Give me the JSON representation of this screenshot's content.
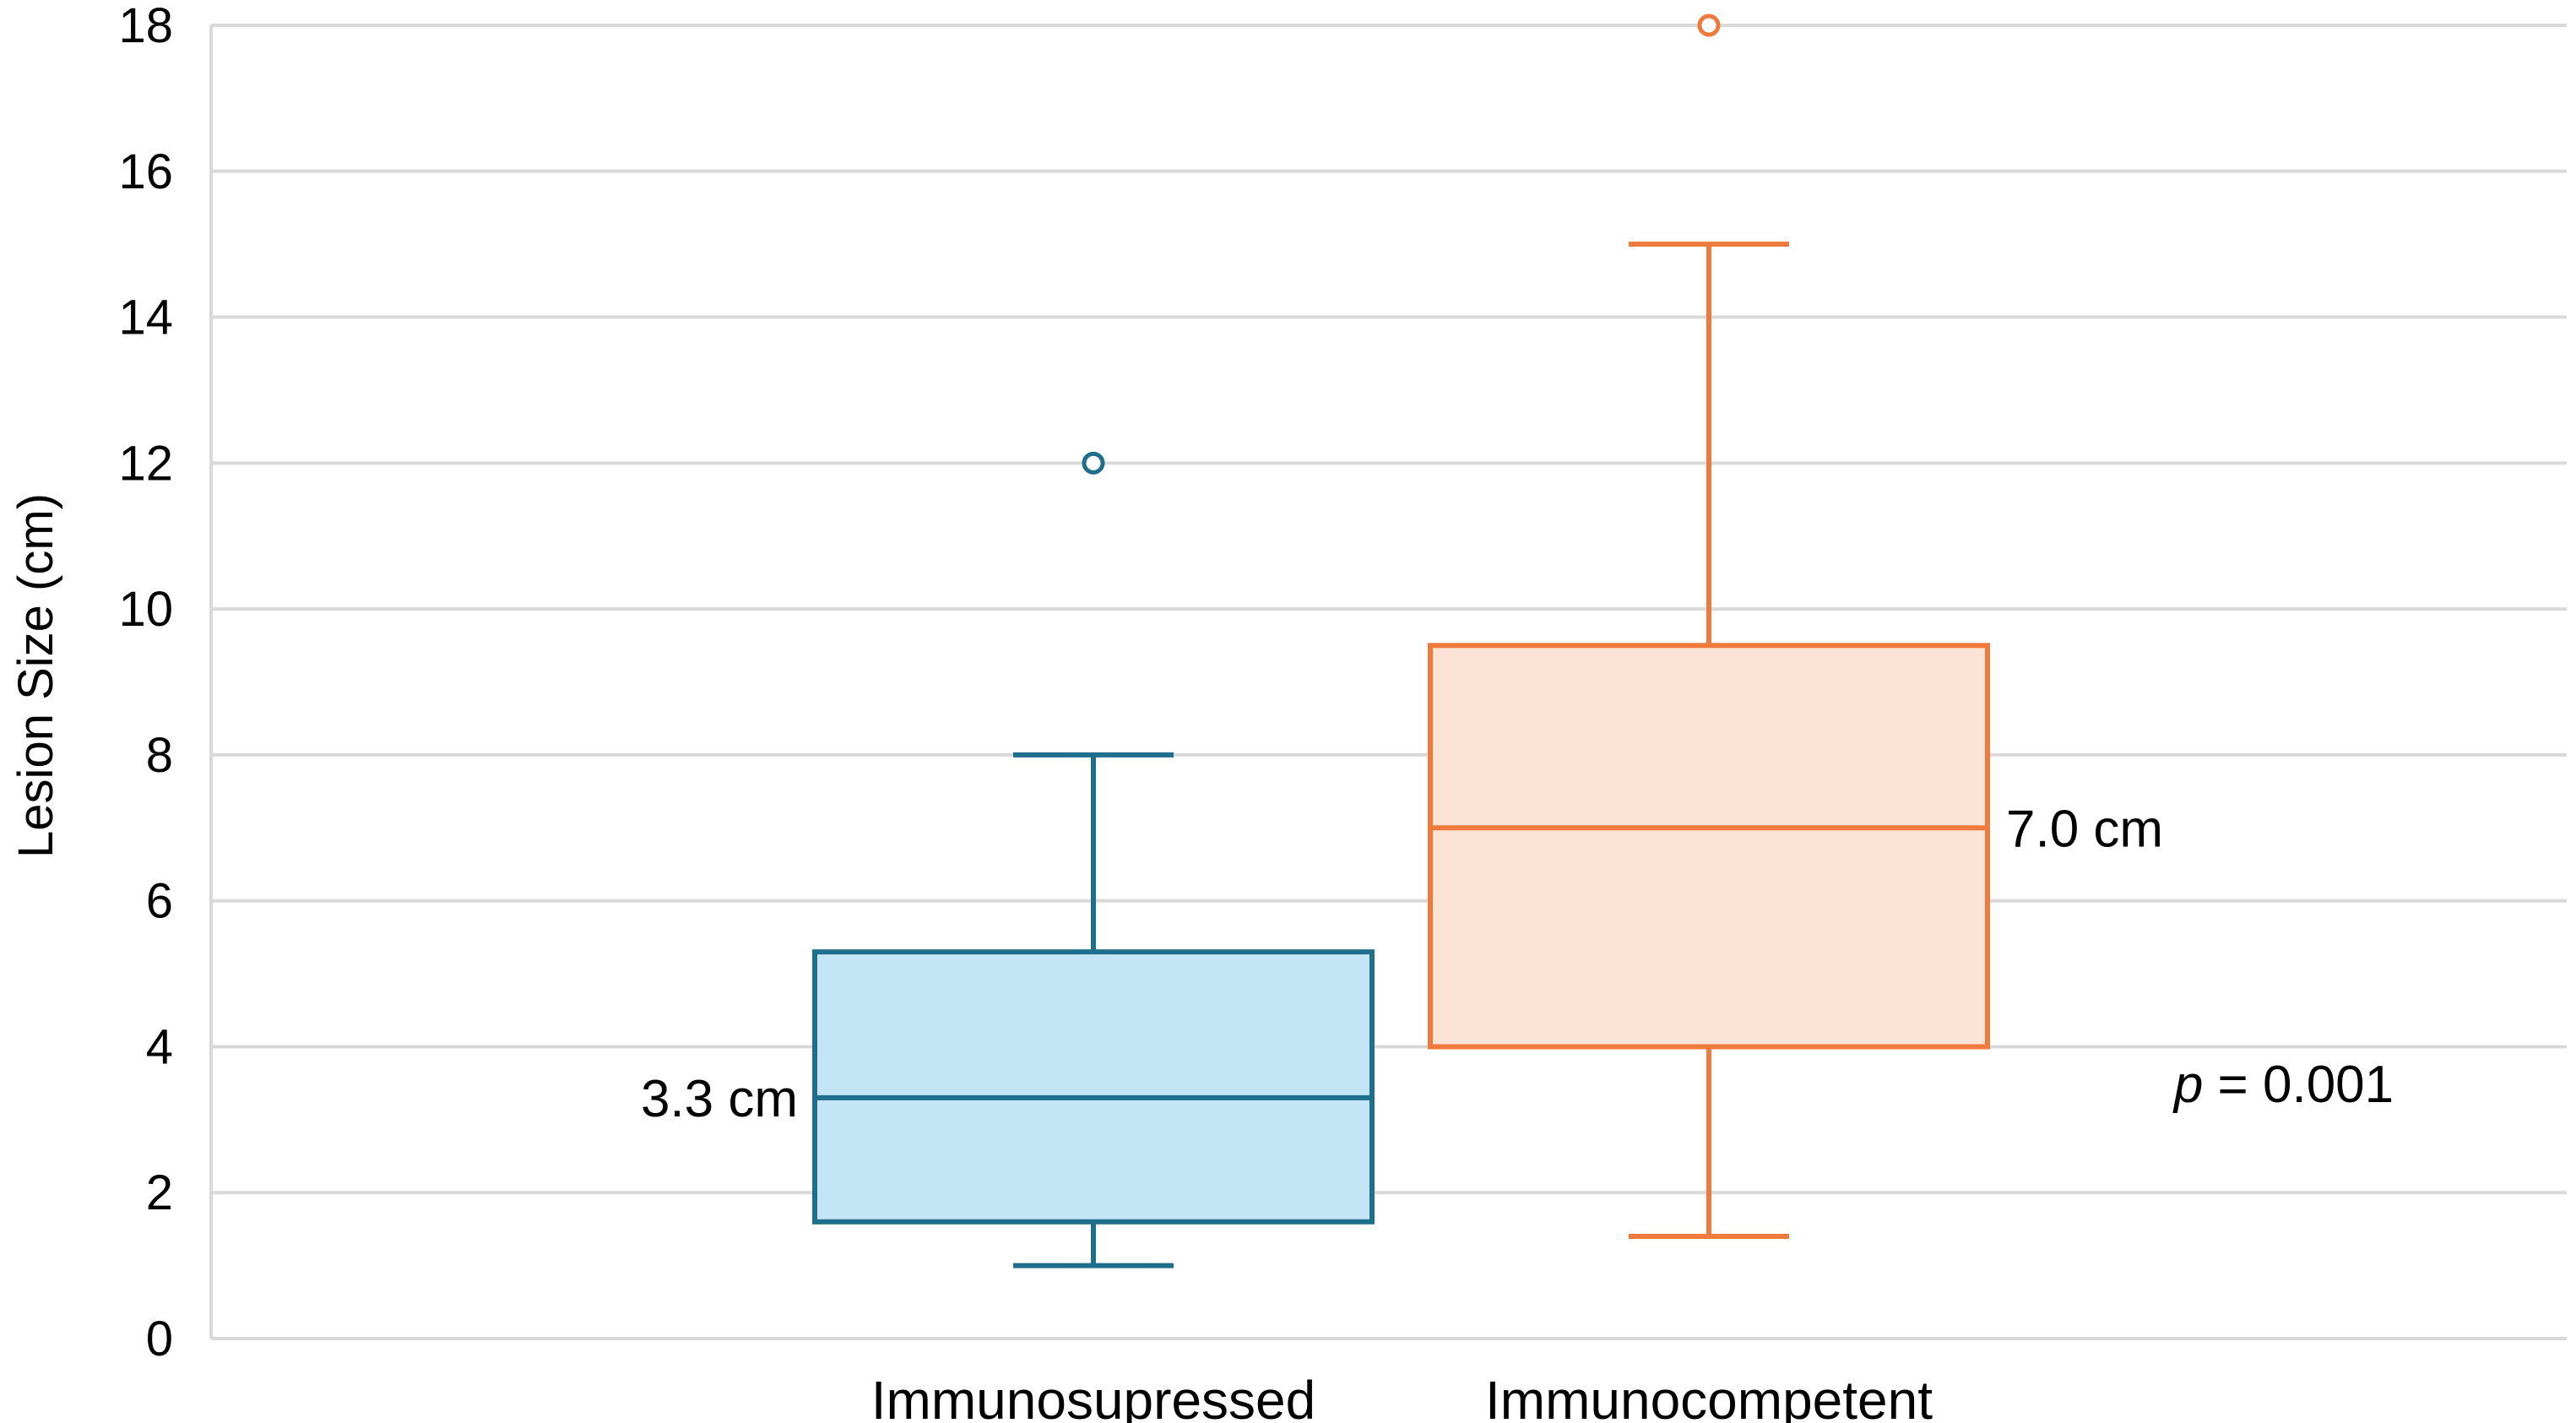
{
  "chart_data": {
    "type": "boxplot",
    "title": "",
    "xlabel": "",
    "ylabel": "Lesion Size (cm)",
    "ylim": [
      0,
      18
    ],
    "yticks": [
      0,
      2,
      4,
      6,
      8,
      10,
      12,
      14,
      16,
      18
    ],
    "grid": true,
    "legend": "none",
    "categories": [
      "Immunosupressed",
      "Immunocompetent"
    ],
    "series": [
      {
        "category": "Immunosupressed",
        "min": 1.0,
        "q1": 1.6,
        "median": 3.3,
        "q3": 5.3,
        "max": 8.0,
        "outliers": [
          12.0
        ],
        "median_label": "3.3 cm",
        "median_label_side": "left",
        "stroke": "#1f6e8c",
        "fill": "#c3e4f5"
      },
      {
        "category": "Immunocompetent",
        "min": 1.4,
        "q1": 4.0,
        "median": 7.0,
        "q3": 9.5,
        "max": 15.0,
        "outliers": [
          18.0
        ],
        "median_label": "7.0 cm",
        "median_label_side": "right",
        "stroke": "#ef7a3c",
        "fill": "#fbe3d6"
      }
    ],
    "annotation": {
      "p_symbol": "p",
      "p_text": " = 0.001"
    }
  }
}
